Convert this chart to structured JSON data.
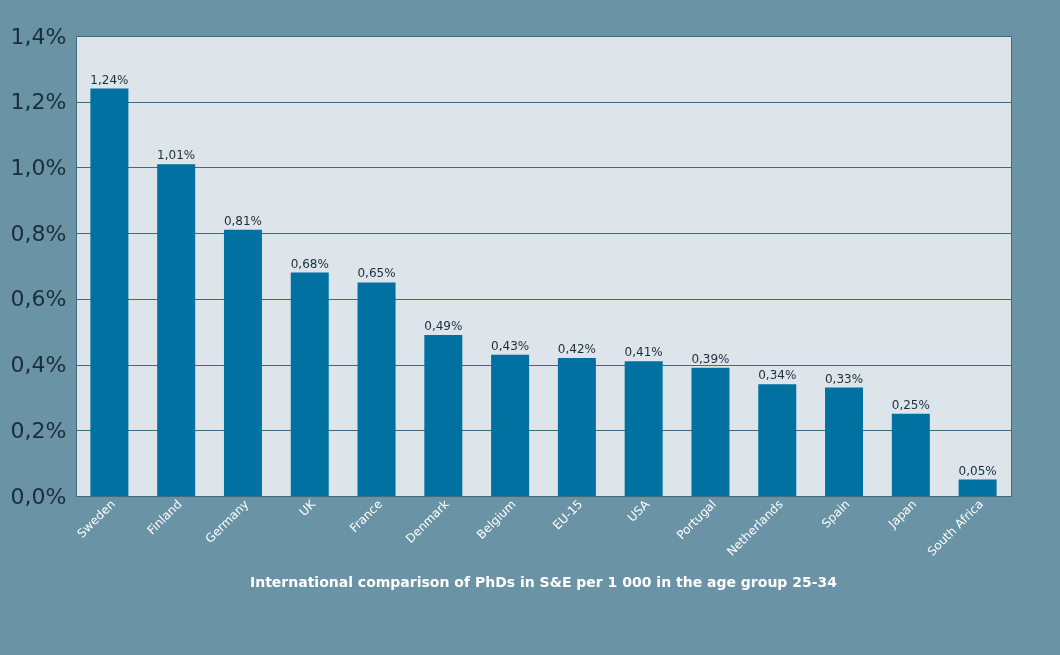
{
  "chart_data": {
    "type": "bar",
    "title": "International comparison of PhDs in S&E per 1 000 in the age group 25-34",
    "categories": [
      "Sweden",
      "Finland",
      "Germany",
      "UK",
      "France",
      "Denmark",
      "Belgium",
      "EU-15",
      "USA",
      "Portugal",
      "Netherlands",
      "Spain",
      "Japan",
      "South Africa"
    ],
    "values": [
      1.24,
      1.01,
      0.81,
      0.68,
      0.65,
      0.49,
      0.43,
      0.42,
      0.41,
      0.39,
      0.34,
      0.33,
      0.25,
      0.05
    ],
    "value_labels": [
      "1,24%",
      "1,01%",
      "0,81%",
      "0,68%",
      "0,65%",
      "0,49%",
      "0,43%",
      "0,42%",
      "0,41%",
      "0,39%",
      "0,34%",
      "0,33%",
      "0,25%",
      "0,05%"
    ],
    "color": "#0071a0",
    "ylim": [
      0,
      1.4
    ],
    "yticks": [
      {
        "value": 0,
        "label": "0,0%"
      },
      {
        "value": 0.2,
        "label": "0,2%"
      },
      {
        "value": 0.4,
        "label": "0,4%"
      },
      {
        "value": 0.6,
        "label": "0,6%"
      },
      {
        "value": 0.8,
        "label": "0,8%"
      },
      {
        "value": 1.0,
        "label": "1,0%"
      },
      {
        "value": 1.2,
        "label": "1,2%"
      },
      {
        "value": 1.4,
        "label": "1,4%"
      }
    ],
    "grid": "y"
  }
}
